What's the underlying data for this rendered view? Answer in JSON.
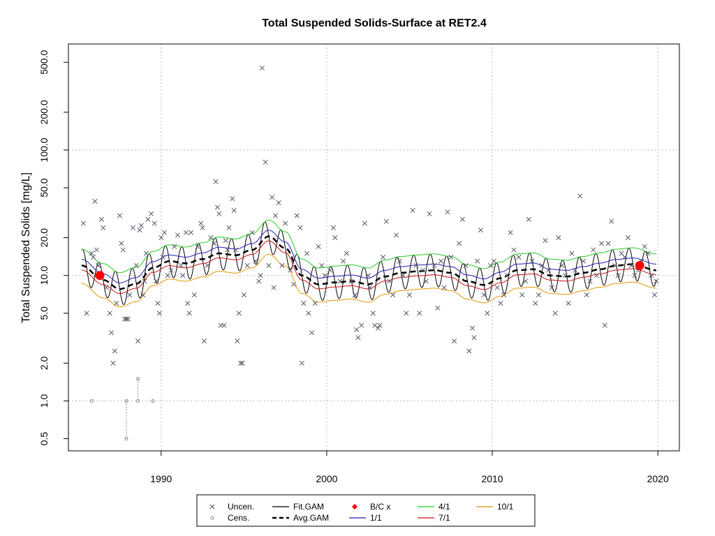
{
  "chart_data": {
    "type": "scatter",
    "title": "Total Suspended Solids-Surface at RET2.4",
    "xlabel": "",
    "ylabel": "Total Suspended Solids [mg/L]",
    "xlim": [
      1984.4,
      2021.3
    ],
    "ylim": [
      0.4,
      700
    ],
    "y_scale": "log",
    "x_ticks": [
      1990,
      2000,
      2010,
      2020
    ],
    "x_tick_labels": [
      "1990",
      "2000",
      "2010",
      "2020"
    ],
    "y_ticks": [
      0.5,
      1,
      2,
      5,
      10,
      20,
      50,
      100,
      200,
      500
    ],
    "y_tick_labels": [
      "0.5",
      "1.0",
      "2.0",
      "5.0",
      "10.0",
      "20.0",
      "50.0",
      "100.0",
      "200.0",
      "500.0"
    ],
    "grid": true,
    "legend_position": "bottom",
    "legend": [
      {
        "label": "Uncen.",
        "marker": "x",
        "color": "#555555"
      },
      {
        "label": "Cens.",
        "marker": "circle-open",
        "color": "#888888"
      },
      {
        "label": "Fit.GAM",
        "marker": "line",
        "color": "#000000"
      },
      {
        "label": "Avg.GAM",
        "marker": "dashed-line",
        "color": "#000000"
      },
      {
        "label": "B/C x",
        "marker": "diamond",
        "color": "#ff0000"
      },
      {
        "label": "1/1",
        "marker": "line",
        "color": "#1f1fb4"
      },
      {
        "label": "4/1",
        "marker": "line",
        "color": "#22cc22"
      },
      {
        "label": "7/1",
        "marker": "line",
        "color": "#cc1111"
      },
      {
        "label": "10/1",
        "marker": "line",
        "color": "#e69500"
      }
    ],
    "colors": {
      "uncen": "#555a66",
      "cens": "#888888",
      "fit": "#000000",
      "avg": "#000000",
      "bc": "#ff0000",
      "d1_1": "#1f1fb4",
      "d4_1": "#22cc22",
      "d7_1": "#cc1111",
      "d10_1": "#e69500",
      "grid": "#bbbbbb"
    },
    "avg_gam": [
      [
        1985.2,
        12.0
      ],
      [
        1986.5,
        9.2
      ],
      [
        1987.5,
        7.8
      ],
      [
        1988.5,
        8.6
      ],
      [
        1989.5,
        11.5
      ],
      [
        1990.5,
        13.0
      ],
      [
        1991.5,
        12.5
      ],
      [
        1992.5,
        13.5
      ],
      [
        1993.5,
        15.0
      ],
      [
        1994.5,
        14.5
      ],
      [
        1995.5,
        16.0
      ],
      [
        1996.5,
        20.5
      ],
      [
        1997.5,
        16.5
      ],
      [
        1998.5,
        10.0
      ],
      [
        1999.5,
        8.5
      ],
      [
        2000.5,
        8.8
      ],
      [
        2001.5,
        9.0
      ],
      [
        2002.5,
        8.5
      ],
      [
        2003.5,
        9.8
      ],
      [
        2004.5,
        10.5
      ],
      [
        2005.5,
        10.8
      ],
      [
        2006.5,
        11.0
      ],
      [
        2007.5,
        10.5
      ],
      [
        2008.5,
        9.0
      ],
      [
        2009.5,
        8.4
      ],
      [
        2010.5,
        9.5
      ],
      [
        2011.5,
        11.0
      ],
      [
        2012.5,
        11.2
      ],
      [
        2013.5,
        10.0
      ],
      [
        2014.5,
        9.8
      ],
      [
        2015.5,
        10.5
      ],
      [
        2016.5,
        11.2
      ],
      [
        2017.5,
        12.0
      ],
      [
        2018.5,
        12.3
      ],
      [
        2019.9,
        11.0
      ]
    ],
    "season_1_1_ratio": 1.12,
    "season_4_1_ratio": 1.35,
    "season_7_1_ratio": 0.92,
    "season_10_1_ratio": 0.72,
    "fit_seasonal_amplitude": 0.3,
    "bc_points": [
      {
        "x": 1986.3,
        "y": 10.0
      },
      {
        "x": 2018.9,
        "y": 12.0
      }
    ],
    "uncensored": [
      [
        1985.3,
        26
      ],
      [
        1985.5,
        5
      ],
      [
        1985.8,
        15
      ],
      [
        1985.9,
        14
      ],
      [
        1986.0,
        39
      ],
      [
        1986.1,
        16
      ],
      [
        1986.2,
        12
      ],
      [
        1986.4,
        28
      ],
      [
        1986.5,
        24
      ],
      [
        1986.7,
        8
      ],
      [
        1986.9,
        5
      ],
      [
        1987.0,
        3.5
      ],
      [
        1987.1,
        2
      ],
      [
        1987.2,
        2.5
      ],
      [
        1987.3,
        6
      ],
      [
        1987.5,
        30
      ],
      [
        1987.6,
        18
      ],
      [
        1987.7,
        16
      ],
      [
        1987.8,
        4.5
      ],
      [
        1987.9,
        4.5
      ],
      [
        1988.0,
        4.5
      ],
      [
        1988.1,
        7
      ],
      [
        1988.3,
        24
      ],
      [
        1988.5,
        12
      ],
      [
        1988.6,
        3
      ],
      [
        1988.7,
        23
      ],
      [
        1988.8,
        25
      ],
      [
        1988.9,
        7
      ],
      [
        1989.0,
        9
      ],
      [
        1989.1,
        15
      ],
      [
        1989.2,
        28
      ],
      [
        1989.4,
        31
      ],
      [
        1989.6,
        26
      ],
      [
        1989.7,
        9
      ],
      [
        1989.8,
        6
      ],
      [
        1989.9,
        5
      ],
      [
        1990.0,
        20
      ],
      [
        1990.1,
        14
      ],
      [
        1990.2,
        22
      ],
      [
        1990.4,
        10
      ],
      [
        1990.6,
        11
      ],
      [
        1990.8,
        17
      ],
      [
        1991.0,
        21
      ],
      [
        1991.2,
        12
      ],
      [
        1991.3,
        10
      ],
      [
        1991.5,
        22
      ],
      [
        1991.6,
        6
      ],
      [
        1991.7,
        5
      ],
      [
        1991.8,
        22
      ],
      [
        1992.0,
        7
      ],
      [
        1992.2,
        17
      ],
      [
        1992.4,
        26
      ],
      [
        1992.5,
        24
      ],
      [
        1992.6,
        3
      ],
      [
        1992.8,
        12
      ],
      [
        1993.0,
        20
      ],
      [
        1993.2,
        18
      ],
      [
        1993.3,
        56
      ],
      [
        1993.4,
        35
      ],
      [
        1993.5,
        31
      ],
      [
        1993.6,
        4
      ],
      [
        1993.8,
        4
      ],
      [
        1993.9,
        19
      ],
      [
        1994.0,
        16
      ],
      [
        1994.1,
        24
      ],
      [
        1994.3,
        41
      ],
      [
        1994.4,
        33
      ],
      [
        1994.5,
        16
      ],
      [
        1994.6,
        3
      ],
      [
        1994.7,
        5
      ],
      [
        1994.8,
        2
      ],
      [
        1994.9,
        2
      ],
      [
        1995.0,
        7
      ],
      [
        1995.2,
        12
      ],
      [
        1995.5,
        22
      ],
      [
        1995.7,
        13
      ],
      [
        1995.9,
        9
      ],
      [
        1996.0,
        10
      ],
      [
        1996.1,
        450
      ],
      [
        1996.3,
        80
      ],
      [
        1996.5,
        12
      ],
      [
        1996.7,
        42
      ],
      [
        1996.8,
        8
      ],
      [
        1996.9,
        30
      ],
      [
        1997.1,
        38
      ],
      [
        1997.3,
        12
      ],
      [
        1997.5,
        26
      ],
      [
        1997.8,
        11
      ],
      [
        1998.0,
        8.5
      ],
      [
        1998.2,
        30
      ],
      [
        1998.4,
        24
      ],
      [
        1998.5,
        2
      ],
      [
        1998.6,
        6
      ],
      [
        1998.8,
        15
      ],
      [
        1998.9,
        5
      ],
      [
        1999.1,
        3.5
      ],
      [
        1999.3,
        6
      ],
      [
        1999.5,
        17
      ],
      [
        1999.7,
        12
      ],
      [
        1999.9,
        10
      ],
      [
        2000.2,
        11
      ],
      [
        2000.4,
        24
      ],
      [
        2000.5,
        20
      ],
      [
        2000.8,
        9
      ],
      [
        2001.0,
        13
      ],
      [
        2001.2,
        15
      ],
      [
        2001.5,
        9
      ],
      [
        2001.7,
        7
      ],
      [
        2001.8,
        3.7
      ],
      [
        2001.9,
        3.2
      ],
      [
        2002.1,
        4
      ],
      [
        2002.3,
        26
      ],
      [
        2002.5,
        10
      ],
      [
        2002.6,
        8
      ],
      [
        2002.8,
        5
      ],
      [
        2002.9,
        4
      ],
      [
        2003.1,
        3.8
      ],
      [
        2003.2,
        4
      ],
      [
        2003.4,
        14
      ],
      [
        2003.6,
        27
      ],
      [
        2003.8,
        9
      ],
      [
        2004.0,
        7
      ],
      [
        2004.2,
        21
      ],
      [
        2004.4,
        13
      ],
      [
        2004.6,
        10
      ],
      [
        2004.8,
        5
      ],
      [
        2005.0,
        7
      ],
      [
        2005.2,
        33
      ],
      [
        2005.4,
        12
      ],
      [
        2005.6,
        5
      ],
      [
        2005.8,
        11
      ],
      [
        2006.0,
        9
      ],
      [
        2006.2,
        31
      ],
      [
        2006.5,
        12
      ],
      [
        2006.7,
        5.5
      ],
      [
        2006.9,
        13
      ],
      [
        2007.1,
        8
      ],
      [
        2007.3,
        32
      ],
      [
        2007.5,
        14
      ],
      [
        2007.7,
        3
      ],
      [
        2008.0,
        18
      ],
      [
        2008.2,
        28
      ],
      [
        2008.4,
        12
      ],
      [
        2008.6,
        2.5
      ],
      [
        2008.8,
        3.8
      ],
      [
        2008.9,
        3.2
      ],
      [
        2009.1,
        13
      ],
      [
        2009.3,
        23
      ],
      [
        2009.5,
        7
      ],
      [
        2009.7,
        5
      ],
      [
        2009.9,
        12
      ],
      [
        2010.1,
        13
      ],
      [
        2010.3,
        8
      ],
      [
        2010.5,
        6
      ],
      [
        2010.7,
        7
      ],
      [
        2010.9,
        10
      ],
      [
        2011.1,
        22
      ],
      [
        2011.3,
        16
      ],
      [
        2011.6,
        14
      ],
      [
        2011.8,
        7
      ],
      [
        2012.0,
        9
      ],
      [
        2012.2,
        28
      ],
      [
        2012.4,
        13
      ],
      [
        2012.6,
        6
      ],
      [
        2012.8,
        7
      ],
      [
        2013.0,
        12
      ],
      [
        2013.2,
        19
      ],
      [
        2013.4,
        11
      ],
      [
        2013.6,
        8
      ],
      [
        2013.8,
        5
      ],
      [
        2014.0,
        20
      ],
      [
        2014.2,
        12
      ],
      [
        2014.4,
        10
      ],
      [
        2014.6,
        6
      ],
      [
        2014.8,
        15
      ],
      [
        2015.0,
        11
      ],
      [
        2015.3,
        43
      ],
      [
        2015.5,
        13
      ],
      [
        2015.7,
        7
      ],
      [
        2015.9,
        9
      ],
      [
        2016.1,
        16
      ],
      [
        2016.3,
        10
      ],
      [
        2016.6,
        18
      ],
      [
        2016.8,
        4
      ],
      [
        2017.0,
        18
      ],
      [
        2017.2,
        27
      ],
      [
        2017.4,
        12
      ],
      [
        2017.6,
        10
      ],
      [
        2017.8,
        15
      ],
      [
        2018.0,
        14
      ],
      [
        2018.2,
        20
      ],
      [
        2018.4,
        12
      ],
      [
        2018.6,
        10
      ],
      [
        2018.8,
        11
      ],
      [
        2019.0,
        13
      ],
      [
        2019.2,
        17
      ],
      [
        2019.4,
        15
      ],
      [
        2019.6,
        10
      ],
      [
        2019.8,
        7
      ],
      [
        2019.9,
        9
      ]
    ],
    "censored": [
      {
        "x": 1985.8,
        "y": 1.0,
        "lower": 1.0
      },
      {
        "x": 1987.9,
        "y": 1.0,
        "lower": 0.5
      },
      {
        "x": 1988.6,
        "y": 1.5,
        "lower": 1.0
      },
      {
        "x": 1989.5,
        "y": 1.0,
        "lower": 1.0
      }
    ]
  }
}
